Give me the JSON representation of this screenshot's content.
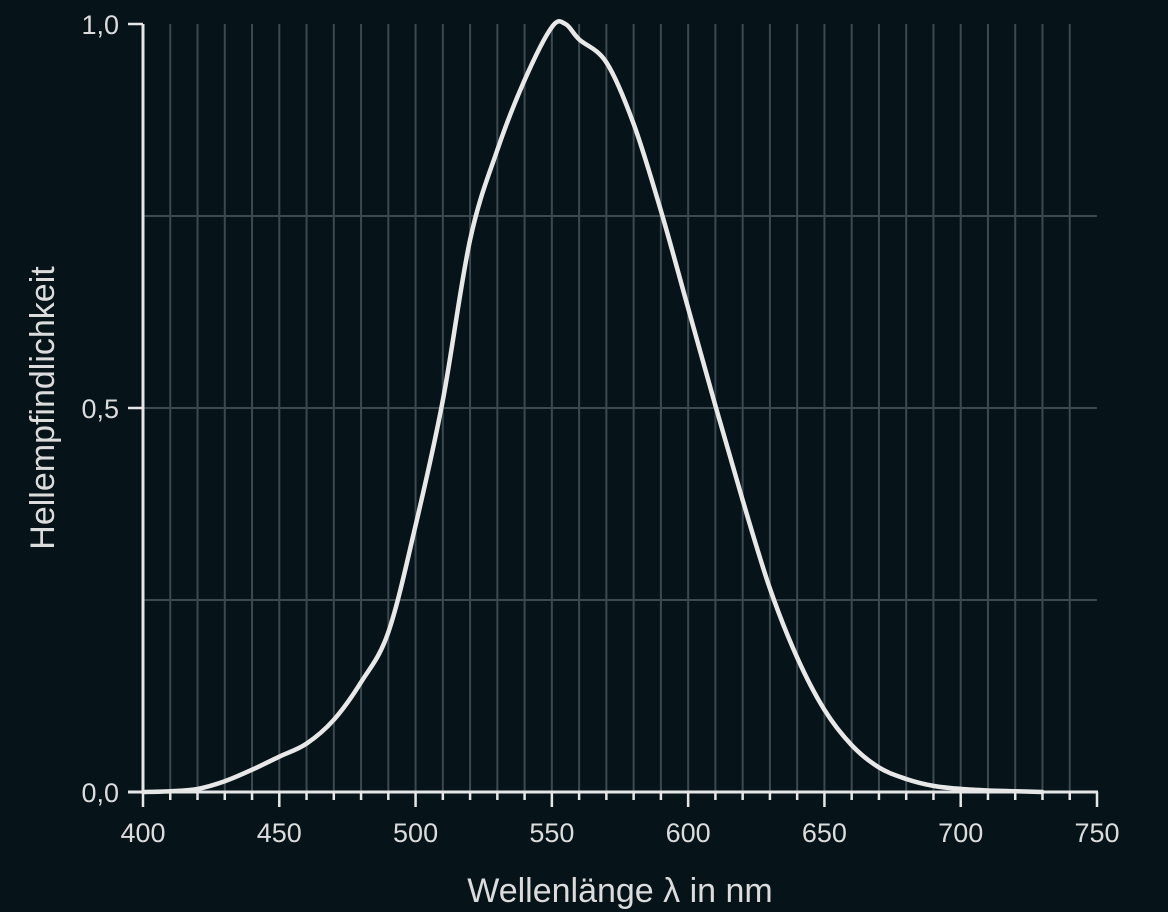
{
  "chart_data": {
    "type": "line",
    "title": "",
    "xlabel": "Wellenlänge λ in nm",
    "ylabel": "Hellempfindlichkeit",
    "xlim": [
      400,
      750
    ],
    "ylim": [
      0,
      1.0
    ],
    "x_ticks": [
      400,
      450,
      500,
      550,
      600,
      650,
      700,
      750
    ],
    "x_tick_labels": [
      "400",
      "450",
      "500",
      "550",
      "600",
      "650",
      "700",
      "750"
    ],
    "x_minor_step": 10,
    "y_ticks": [
      0,
      0.5,
      1.0
    ],
    "y_tick_labels": [
      "0,0",
      "0,5",
      "1,0"
    ],
    "y_grid": [
      0.25,
      0.5,
      0.75
    ],
    "grid": true,
    "legend": null,
    "series": [
      {
        "name": "Hellempfindlichkeit",
        "color": "#e8e8e8",
        "x": [
          400,
          410,
          420,
          430,
          440,
          450,
          460,
          470,
          480,
          490,
          500,
          510,
          520,
          530,
          540,
          550,
          555,
          560,
          570,
          580,
          590,
          600,
          610,
          620,
          630,
          640,
          650,
          660,
          670,
          680,
          690,
          700,
          710,
          720,
          730
        ],
        "y": [
          0.0,
          0.001,
          0.004,
          0.014,
          0.029,
          0.046,
          0.063,
          0.094,
          0.143,
          0.208,
          0.347,
          0.51,
          0.719,
          0.836,
          0.927,
          0.996,
          1.0,
          0.98,
          0.95,
          0.87,
          0.757,
          0.63,
          0.503,
          0.38,
          0.265,
          0.175,
          0.107,
          0.061,
          0.032,
          0.017,
          0.008,
          0.004,
          0.002,
          0.001,
          0.0
        ]
      }
    ]
  },
  "colors": {
    "background": "#06141a",
    "axis": "#e6e6e6",
    "grid": "#3c4a50",
    "curve": "#e8e8e8",
    "text": "#dcdcdc"
  }
}
